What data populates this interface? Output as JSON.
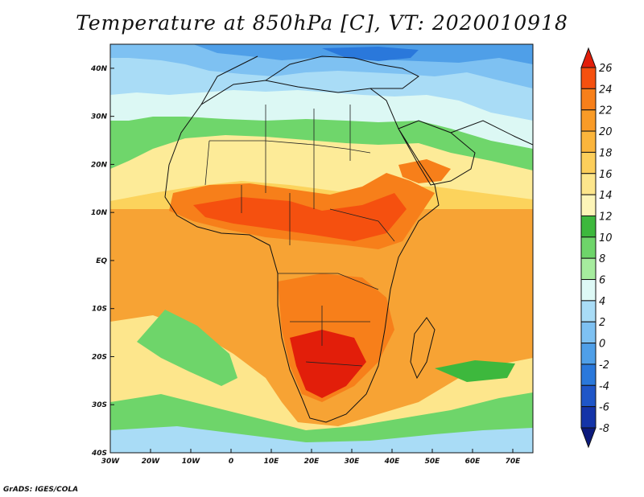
{
  "title": "Temperature at 850hPa [C], VT: 2020010918",
  "credit": "GrADS: IGES/COLA",
  "map": {
    "lon_range": [
      -30,
      75
    ],
    "lat_range": [
      -40,
      45
    ],
    "lat_ticks": [
      {
        "value": 40,
        "label": "40N"
      },
      {
        "value": 30,
        "label": "30N"
      },
      {
        "value": 20,
        "label": "20N"
      },
      {
        "value": 10,
        "label": "10N"
      },
      {
        "value": 0,
        "label": "EQ"
      },
      {
        "value": -10,
        "label": "10S"
      },
      {
        "value": -20,
        "label": "20S"
      },
      {
        "value": -30,
        "label": "30S"
      },
      {
        "value": -40,
        "label": "40S"
      }
    ],
    "lon_ticks": [
      {
        "value": -30,
        "label": "30W"
      },
      {
        "value": -20,
        "label": "20W"
      },
      {
        "value": -10,
        "label": "10W"
      },
      {
        "value": 0,
        "label": "0"
      },
      {
        "value": 10,
        "label": "10E"
      },
      {
        "value": 20,
        "label": "20E"
      },
      {
        "value": 30,
        "label": "30E"
      },
      {
        "value": 40,
        "label": "40E"
      },
      {
        "value": 50,
        "label": "50E"
      },
      {
        "value": 60,
        "label": "60E"
      },
      {
        "value": 70,
        "label": "70E"
      }
    ]
  },
  "colorbar": {
    "levels": [
      "26",
      "24",
      "22",
      "20",
      "18",
      "16",
      "14",
      "12",
      "10",
      "8",
      "6",
      "4",
      "2",
      "0",
      "-2",
      "-4",
      "-6",
      "-8"
    ],
    "colors": [
      "#e21e0a",
      "#f5500f",
      "#f77f1a",
      "#f99b27",
      "#fbb53c",
      "#fcce5b",
      "#fde68c",
      "#fdf5b8",
      "#3db83d",
      "#6ed56a",
      "#a6ec9e",
      "#def9f6",
      "#a9dcf6",
      "#7ec1f2",
      "#4f9fe8",
      "#2a78db",
      "#1f56c8",
      "#1434a8",
      "#0c1a7c"
    ]
  }
}
